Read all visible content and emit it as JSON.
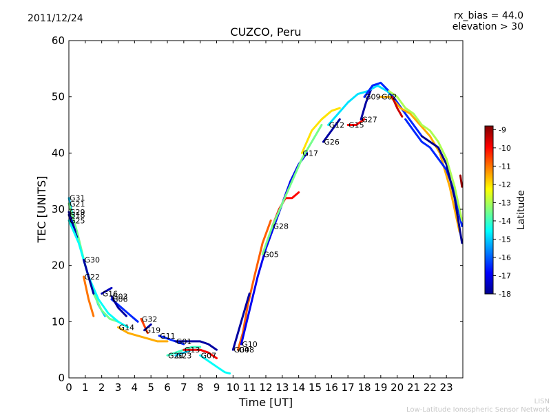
{
  "header": {
    "date": "2011/12/24",
    "bias": "rx_bias = 44.0",
    "elevation": "elevation > 30"
  },
  "footer": {
    "line1": "LISN",
    "line2": "Low-Latitude Ionospheric Sensor Network"
  },
  "colorbar": {
    "label": "Latitude",
    "ticks": [
      "-9",
      "-10",
      "-11",
      "-12",
      "-13",
      "-14",
      "-15",
      "-16",
      "-17",
      "-18"
    ],
    "range": [
      -18,
      -8.8
    ],
    "colors": [
      "#00008f",
      "#0000ff",
      "#0080ff",
      "#00ffff",
      "#80ff80",
      "#ffff00",
      "#ff8000",
      "#ff0000",
      "#800000"
    ]
  },
  "chart_data": {
    "type": "line",
    "title": "CUZCO, Peru",
    "xlabel": "Time [UT]",
    "ylabel": "TEC [UNITS]",
    "xlim": [
      0,
      24
    ],
    "ylim": [
      0,
      60
    ],
    "xticks": [
      "0",
      "1",
      "2",
      "3",
      "4",
      "5",
      "6",
      "7",
      "8",
      "9",
      "10",
      "11",
      "12",
      "13",
      "14",
      "15",
      "16",
      "17",
      "18",
      "19",
      "20",
      "21",
      "22",
      "23"
    ],
    "yticks": [
      "0",
      "10",
      "20",
      "30",
      "40",
      "50",
      "60"
    ],
    "series": [
      {
        "name": "G31",
        "lat": -15.0,
        "x": [
          0.0,
          0.3,
          0.8,
          1.3,
          1.8,
          2.2
        ],
        "y": [
          32,
          28,
          22,
          17,
          13,
          11
        ]
      },
      {
        "name": "G21",
        "lat": -13.5,
        "x": [
          0.0,
          0.5,
          1.0,
          1.5,
          2.0,
          2.5,
          3.0
        ],
        "y": [
          31,
          26,
          20,
          15,
          12,
          10.5,
          10
        ]
      },
      {
        "name": "G29",
        "lat": -17.5,
        "x": [
          0.0,
          0.4
        ],
        "y": [
          29.5,
          26
        ]
      },
      {
        "name": "G18",
        "lat": -17.8,
        "x": [
          0.0,
          0.5
        ],
        "y": [
          29,
          25
        ]
      },
      {
        "name": "G25",
        "lat": -14.5,
        "x": [
          0.0,
          0.6,
          1.2,
          1.8,
          2.4,
          3.0,
          3.6
        ],
        "y": [
          28,
          24,
          18,
          14,
          11.5,
          10,
          9
        ]
      },
      {
        "name": "G30",
        "lat": -17.8,
        "x": [
          0.9,
          1.2,
          1.5
        ],
        "y": [
          21,
          18,
          15
        ]
      },
      {
        "name": "G22",
        "lat": -11.0,
        "x": [
          0.9,
          1.2,
          1.5
        ],
        "y": [
          18,
          14,
          11
        ]
      },
      {
        "name": "G16",
        "lat": -17.5,
        "x": [
          2.0,
          2.3,
          2.6
        ],
        "y": [
          15,
          15.5,
          16
        ]
      },
      {
        "name": "G06",
        "lat": -16.5,
        "x": [
          2.6,
          3.2,
          3.8,
          4.2
        ],
        "y": [
          14,
          12.5,
          11,
          10
        ]
      },
      {
        "name": "G03",
        "lat": -17.8,
        "x": [
          2.6,
          3.0,
          3.5
        ],
        "y": [
          14.5,
          12.5,
          11
        ]
      },
      {
        "name": "G32",
        "lat": -10.5,
        "x": [
          4.4,
          4.8
        ],
        "y": [
          10.5,
          8
        ]
      },
      {
        "name": "G19",
        "lat": -17.8,
        "x": [
          4.6,
          5.0
        ],
        "y": [
          8.5,
          9.5
        ]
      },
      {
        "name": "G14",
        "lat": -11.5,
        "x": [
          3.0,
          3.6,
          4.2,
          4.8,
          5.4,
          6.0
        ],
        "y": [
          9,
          8,
          7.5,
          7,
          6.5,
          6.5
        ]
      },
      {
        "name": "G11",
        "lat": -16.5,
        "x": [
          5.5,
          6.0,
          6.5,
          7.0
        ],
        "y": [
          7.5,
          7,
          6.5,
          6
        ]
      },
      {
        "name": "G01",
        "lat": -17.8,
        "x": [
          6.5,
          7.0,
          7.5,
          8.0,
          8.5,
          9.0
        ],
        "y": [
          6.5,
          6.5,
          6.5,
          6.5,
          6,
          5
        ]
      },
      {
        "name": "G20",
        "lat": -14.0,
        "x": [
          6.0,
          6.5,
          7.0,
          7.5,
          8.0
        ],
        "y": [
          4,
          4.5,
          5,
          5.5,
          5.5
        ]
      },
      {
        "name": "G23",
        "lat": -15.0,
        "x": [
          6.5,
          7.0,
          7.5,
          8.0,
          8.5
        ],
        "y": [
          4,
          4.5,
          5,
          5,
          4.5
        ]
      },
      {
        "name": "G13",
        "lat": -10.0,
        "x": [
          7.0,
          7.5,
          8.0,
          8.5,
          9.0
        ],
        "y": [
          5,
          5,
          5,
          4.5,
          3.5
        ]
      },
      {
        "name": "G07",
        "lat": -14.5,
        "x": [
          8.0,
          8.5,
          9.0,
          9.5,
          9.8
        ],
        "y": [
          4,
          3,
          2,
          1,
          0.8
        ]
      },
      {
        "name": "G08",
        "lat": -10.8,
        "x": [
          10.3,
          10.6,
          10.9,
          11.3,
          11.8,
          12.3
        ],
        "y": [
          5,
          8,
          13,
          18,
          24,
          28
        ]
      },
      {
        "name": "G04",
        "lat": -17.8,
        "x": [
          10.0,
          10.3,
          10.6,
          11.0
        ],
        "y": [
          5,
          8,
          11,
          15
        ]
      },
      {
        "name": "G10",
        "lat": -17.0,
        "x": [
          10.5,
          11.0,
          11.5,
          12.0,
          12.5,
          13.0,
          13.5,
          14.0,
          14.5
        ],
        "y": [
          6,
          12,
          18,
          23,
          27,
          31,
          35,
          38,
          40
        ]
      },
      {
        "name": "G28",
        "lat": -10.0,
        "x": [
          12.4,
          12.8,
          13.2,
          13.6,
          14.0
        ],
        "y": [
          27,
          30,
          32,
          32,
          33
        ]
      },
      {
        "name": "G05",
        "lat": -13.5,
        "x": [
          11.8,
          12.4,
          13.0,
          13.6,
          14.2,
          14.8,
          15.4
        ],
        "y": [
          22,
          27,
          31,
          35,
          39,
          42,
          45
        ]
      },
      {
        "name": "G26",
        "lat": -17.8,
        "x": [
          15.5,
          16.0,
          16.5
        ],
        "y": [
          42,
          44,
          46
        ]
      },
      {
        "name": "G17",
        "lat": -12.0,
        "x": [
          14.2,
          14.8,
          15.4,
          16.0,
          16.5
        ],
        "y": [
          40,
          44,
          46,
          47.5,
          48
        ]
      },
      {
        "name": "G15",
        "lat": -10.0,
        "x": [
          17.0,
          17.5,
          18.0
        ],
        "y": [
          45,
          45,
          46
        ]
      },
      {
        "name": "G27",
        "lat": -17.8,
        "x": [
          17.8,
          18.1,
          18.5
        ],
        "y": [
          46,
          49,
          52
        ]
      },
      {
        "name": "G12",
        "lat": -14.8,
        "x": [
          15.8,
          16.4,
          17.0,
          17.6,
          18.2,
          18.8,
          19.4,
          20.0
        ],
        "y": [
          45,
          47,
          49,
          50.5,
          51,
          52,
          51,
          49
        ]
      },
      {
        "name": "G09",
        "lat": -16.5,
        "x": [
          18.0,
          18.5,
          19.0,
          19.5,
          20.0,
          20.5,
          21.0,
          21.5
        ],
        "y": [
          50,
          52,
          52.5,
          51,
          49,
          47,
          45,
          43
        ]
      },
      {
        "name": "G02",
        "lat": -11.5,
        "x": [
          19.0,
          19.6,
          20.2,
          20.8,
          21.4,
          22.0,
          22.6,
          23.2,
          23.8
        ],
        "y": [
          50,
          50,
          48,
          47,
          45,
          43,
          40,
          34,
          26
        ]
      },
      {
        "name": "",
        "lat": -16.5,
        "x": [
          20.5,
          21.0,
          21.5,
          22.0,
          22.5,
          23.0,
          23.5,
          23.95
        ],
        "y": [
          46,
          44,
          42,
          41,
          39,
          37,
          33,
          27
        ]
      },
      {
        "name": "",
        "lat": -18.0,
        "x": [
          21.5,
          22.0,
          22.5,
          23.0,
          23.5,
          23.95
        ],
        "y": [
          43,
          42,
          41,
          38,
          32,
          24
        ]
      },
      {
        "name": "",
        "lat": -13.0,
        "x": [
          19.5,
          20.0,
          20.5,
          21.0,
          21.5,
          22.0,
          22.5,
          23.0,
          23.5,
          23.95
        ],
        "y": [
          51,
          50,
          48,
          47,
          45,
          44,
          42,
          39,
          34,
          28
        ]
      },
      {
        "name": "",
        "lat": -9.5,
        "x": [
          19.7,
          20.0,
          20.3
        ],
        "y": [
          50,
          48,
          46.5
        ]
      },
      {
        "name": "",
        "lat": -9.0,
        "x": [
          23.85,
          23.95
        ],
        "y": [
          36,
          34
        ]
      }
    ]
  }
}
